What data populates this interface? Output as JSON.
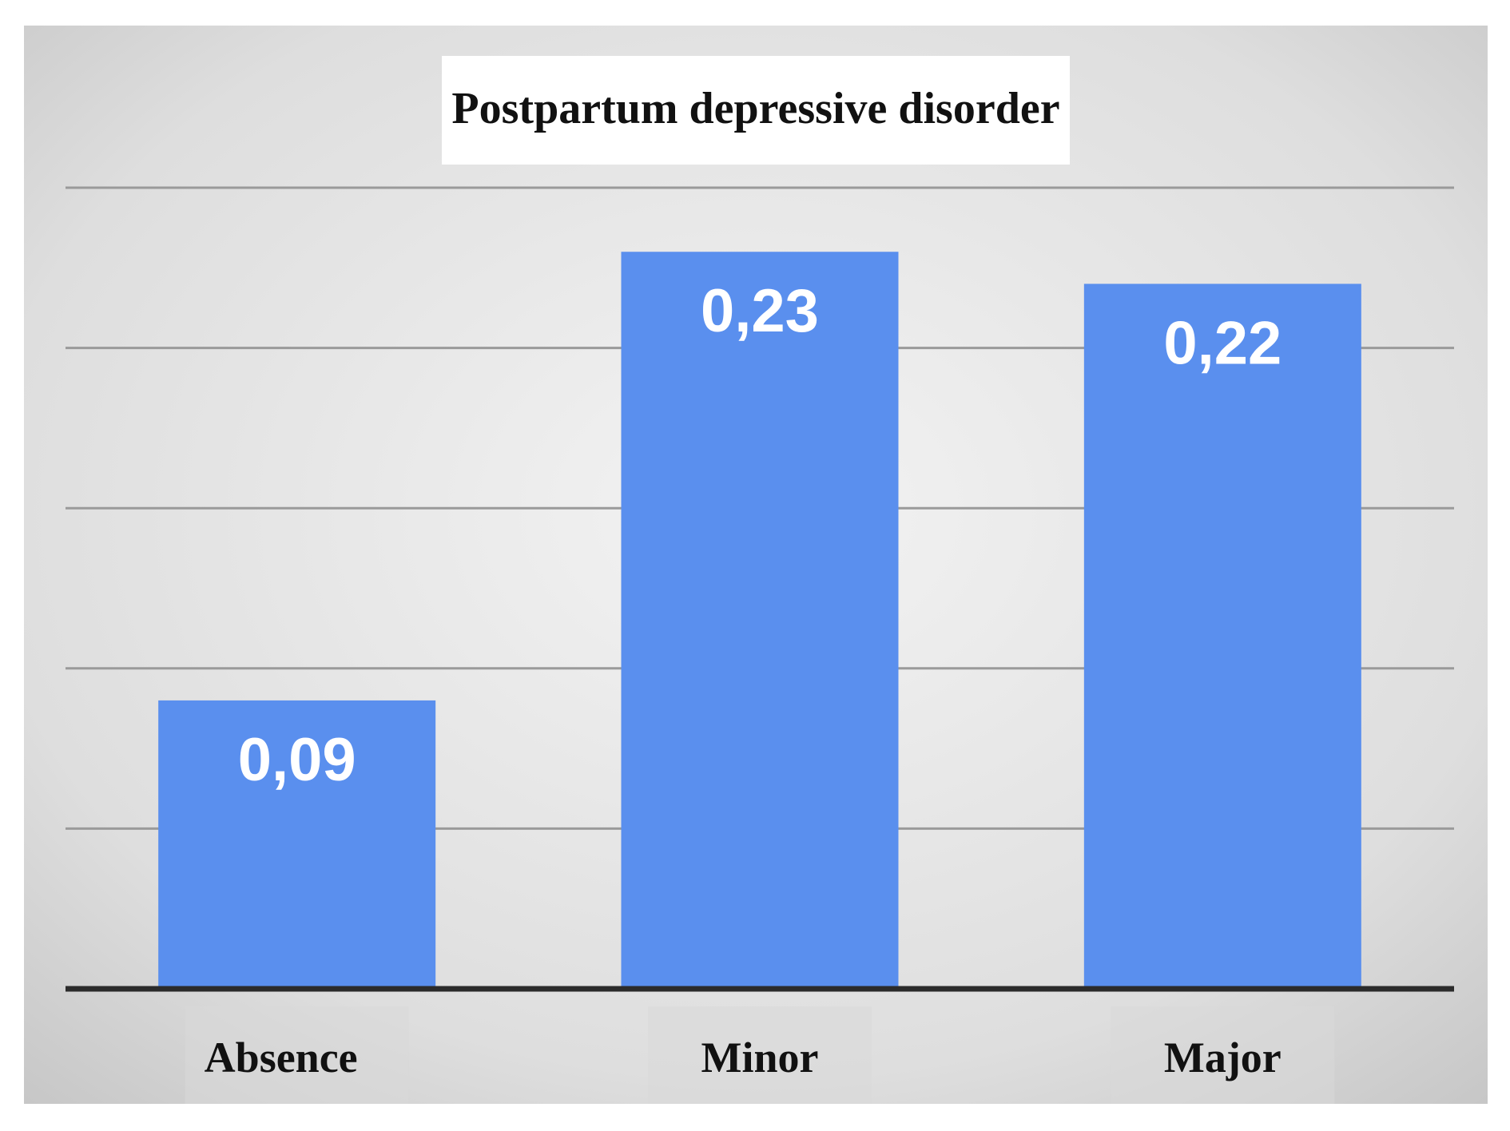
{
  "chart_data": {
    "type": "bar",
    "title": "Postpartum depressive disorder",
    "categories": [
      "Absence",
      "Minor",
      "Major"
    ],
    "values": [
      0.09,
      0.23,
      0.22
    ],
    "value_labels": [
      "0,09",
      "0,23",
      "0,22"
    ],
    "xlabel": "",
    "ylabel": "",
    "ylim": [
      0,
      0.25
    ],
    "grid": true,
    "legend": "none",
    "colors": {
      "bar": "#5a8fee",
      "background_edge": "#c9c9c9",
      "background_center": "#f2f2f2",
      "axis": "#2b2b2b",
      "grid": "#9a9a9a"
    }
  }
}
